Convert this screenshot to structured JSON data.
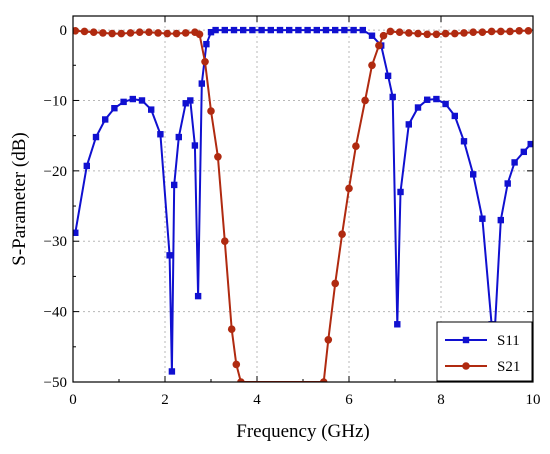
{
  "chart_data": {
    "type": "line",
    "title": "",
    "xlabel": "Frequency (GHz)",
    "ylabel": "S-Parameter (dB)",
    "xlim": [
      0,
      10
    ],
    "ylim": [
      -50,
      2
    ],
    "xticks": [
      0,
      2,
      4,
      6,
      8,
      10
    ],
    "yticks": [
      0,
      -10,
      -20,
      -30,
      -40,
      -50
    ],
    "grid": true,
    "legend_position": "bottom-right",
    "series": [
      {
        "name": "S11",
        "color": "#1010d0",
        "marker": "square",
        "x": [
          0.05,
          0.3,
          0.5,
          0.7,
          0.9,
          1.1,
          1.3,
          1.5,
          1.7,
          1.9,
          2.1,
          2.15,
          2.2,
          2.3,
          2.45,
          2.55,
          2.65,
          2.72,
          2.8,
          2.9,
          3.0,
          3.1,
          3.3,
          3.5,
          3.7,
          3.9,
          4.1,
          4.3,
          4.5,
          4.7,
          4.9,
          5.1,
          5.3,
          5.5,
          5.7,
          5.9,
          6.1,
          6.3,
          6.5,
          6.7,
          6.85,
          6.95,
          7.05,
          7.12,
          7.3,
          7.5,
          7.7,
          7.9,
          8.1,
          8.3,
          8.5,
          8.7,
          8.9,
          9.1,
          9.15,
          9.3,
          9.45,
          9.6,
          9.8,
          9.95
        ],
        "y": [
          -28.8,
          -19.3,
          -15.2,
          -12.7,
          -11.1,
          -10.2,
          -9.8,
          -10.0,
          -11.3,
          -14.8,
          -32.0,
          -48.5,
          -22.0,
          -15.2,
          -10.4,
          -10.0,
          -16.4,
          -37.8,
          -7.6,
          -2.0,
          -0.3,
          0.0,
          0.0,
          0.0,
          0.0,
          0.0,
          0.0,
          0.0,
          0.0,
          0.0,
          0.0,
          0.0,
          0.0,
          0.0,
          0.0,
          0.0,
          0.0,
          0.0,
          -0.8,
          -2.2,
          -6.5,
          -9.5,
          -41.8,
          -23.0,
          -13.4,
          -11.0,
          -9.9,
          -9.8,
          -10.5,
          -12.2,
          -15.8,
          -20.5,
          -26.8,
          -41.8,
          -45.0,
          -27.0,
          -21.8,
          -18.8,
          -17.3,
          -16.2
        ]
      },
      {
        "name": "S21",
        "color": "#b02a10",
        "marker": "circle",
        "x": [
          0.05,
          0.25,
          0.45,
          0.65,
          0.85,
          1.05,
          1.25,
          1.45,
          1.65,
          1.85,
          2.05,
          2.25,
          2.45,
          2.65,
          2.75,
          2.87,
          3.0,
          3.15,
          3.3,
          3.45,
          3.55,
          3.65,
          5.45,
          5.55,
          5.7,
          5.85,
          6.0,
          6.15,
          6.35,
          6.5,
          6.65,
          6.75,
          6.9,
          7.1,
          7.3,
          7.5,
          7.7,
          7.9,
          8.1,
          8.3,
          8.5,
          8.7,
          8.9,
          9.1,
          9.3,
          9.5,
          9.7,
          9.9
        ],
        "y": [
          -0.1,
          -0.2,
          -0.3,
          -0.4,
          -0.5,
          -0.5,
          -0.4,
          -0.3,
          -0.3,
          -0.4,
          -0.5,
          -0.5,
          -0.4,
          -0.3,
          -0.6,
          -4.5,
          -11.5,
          -18.0,
          -30.0,
          -42.5,
          -47.5,
          -50.0,
          -50.0,
          -44.0,
          -36.0,
          -29.0,
          -22.5,
          -16.5,
          -10.0,
          -5.0,
          -2.2,
          -0.8,
          -0.2,
          -0.3,
          -0.4,
          -0.5,
          -0.6,
          -0.6,
          -0.5,
          -0.5,
          -0.4,
          -0.3,
          -0.3,
          -0.2,
          -0.2,
          -0.2,
          -0.1,
          -0.1
        ]
      }
    ]
  }
}
